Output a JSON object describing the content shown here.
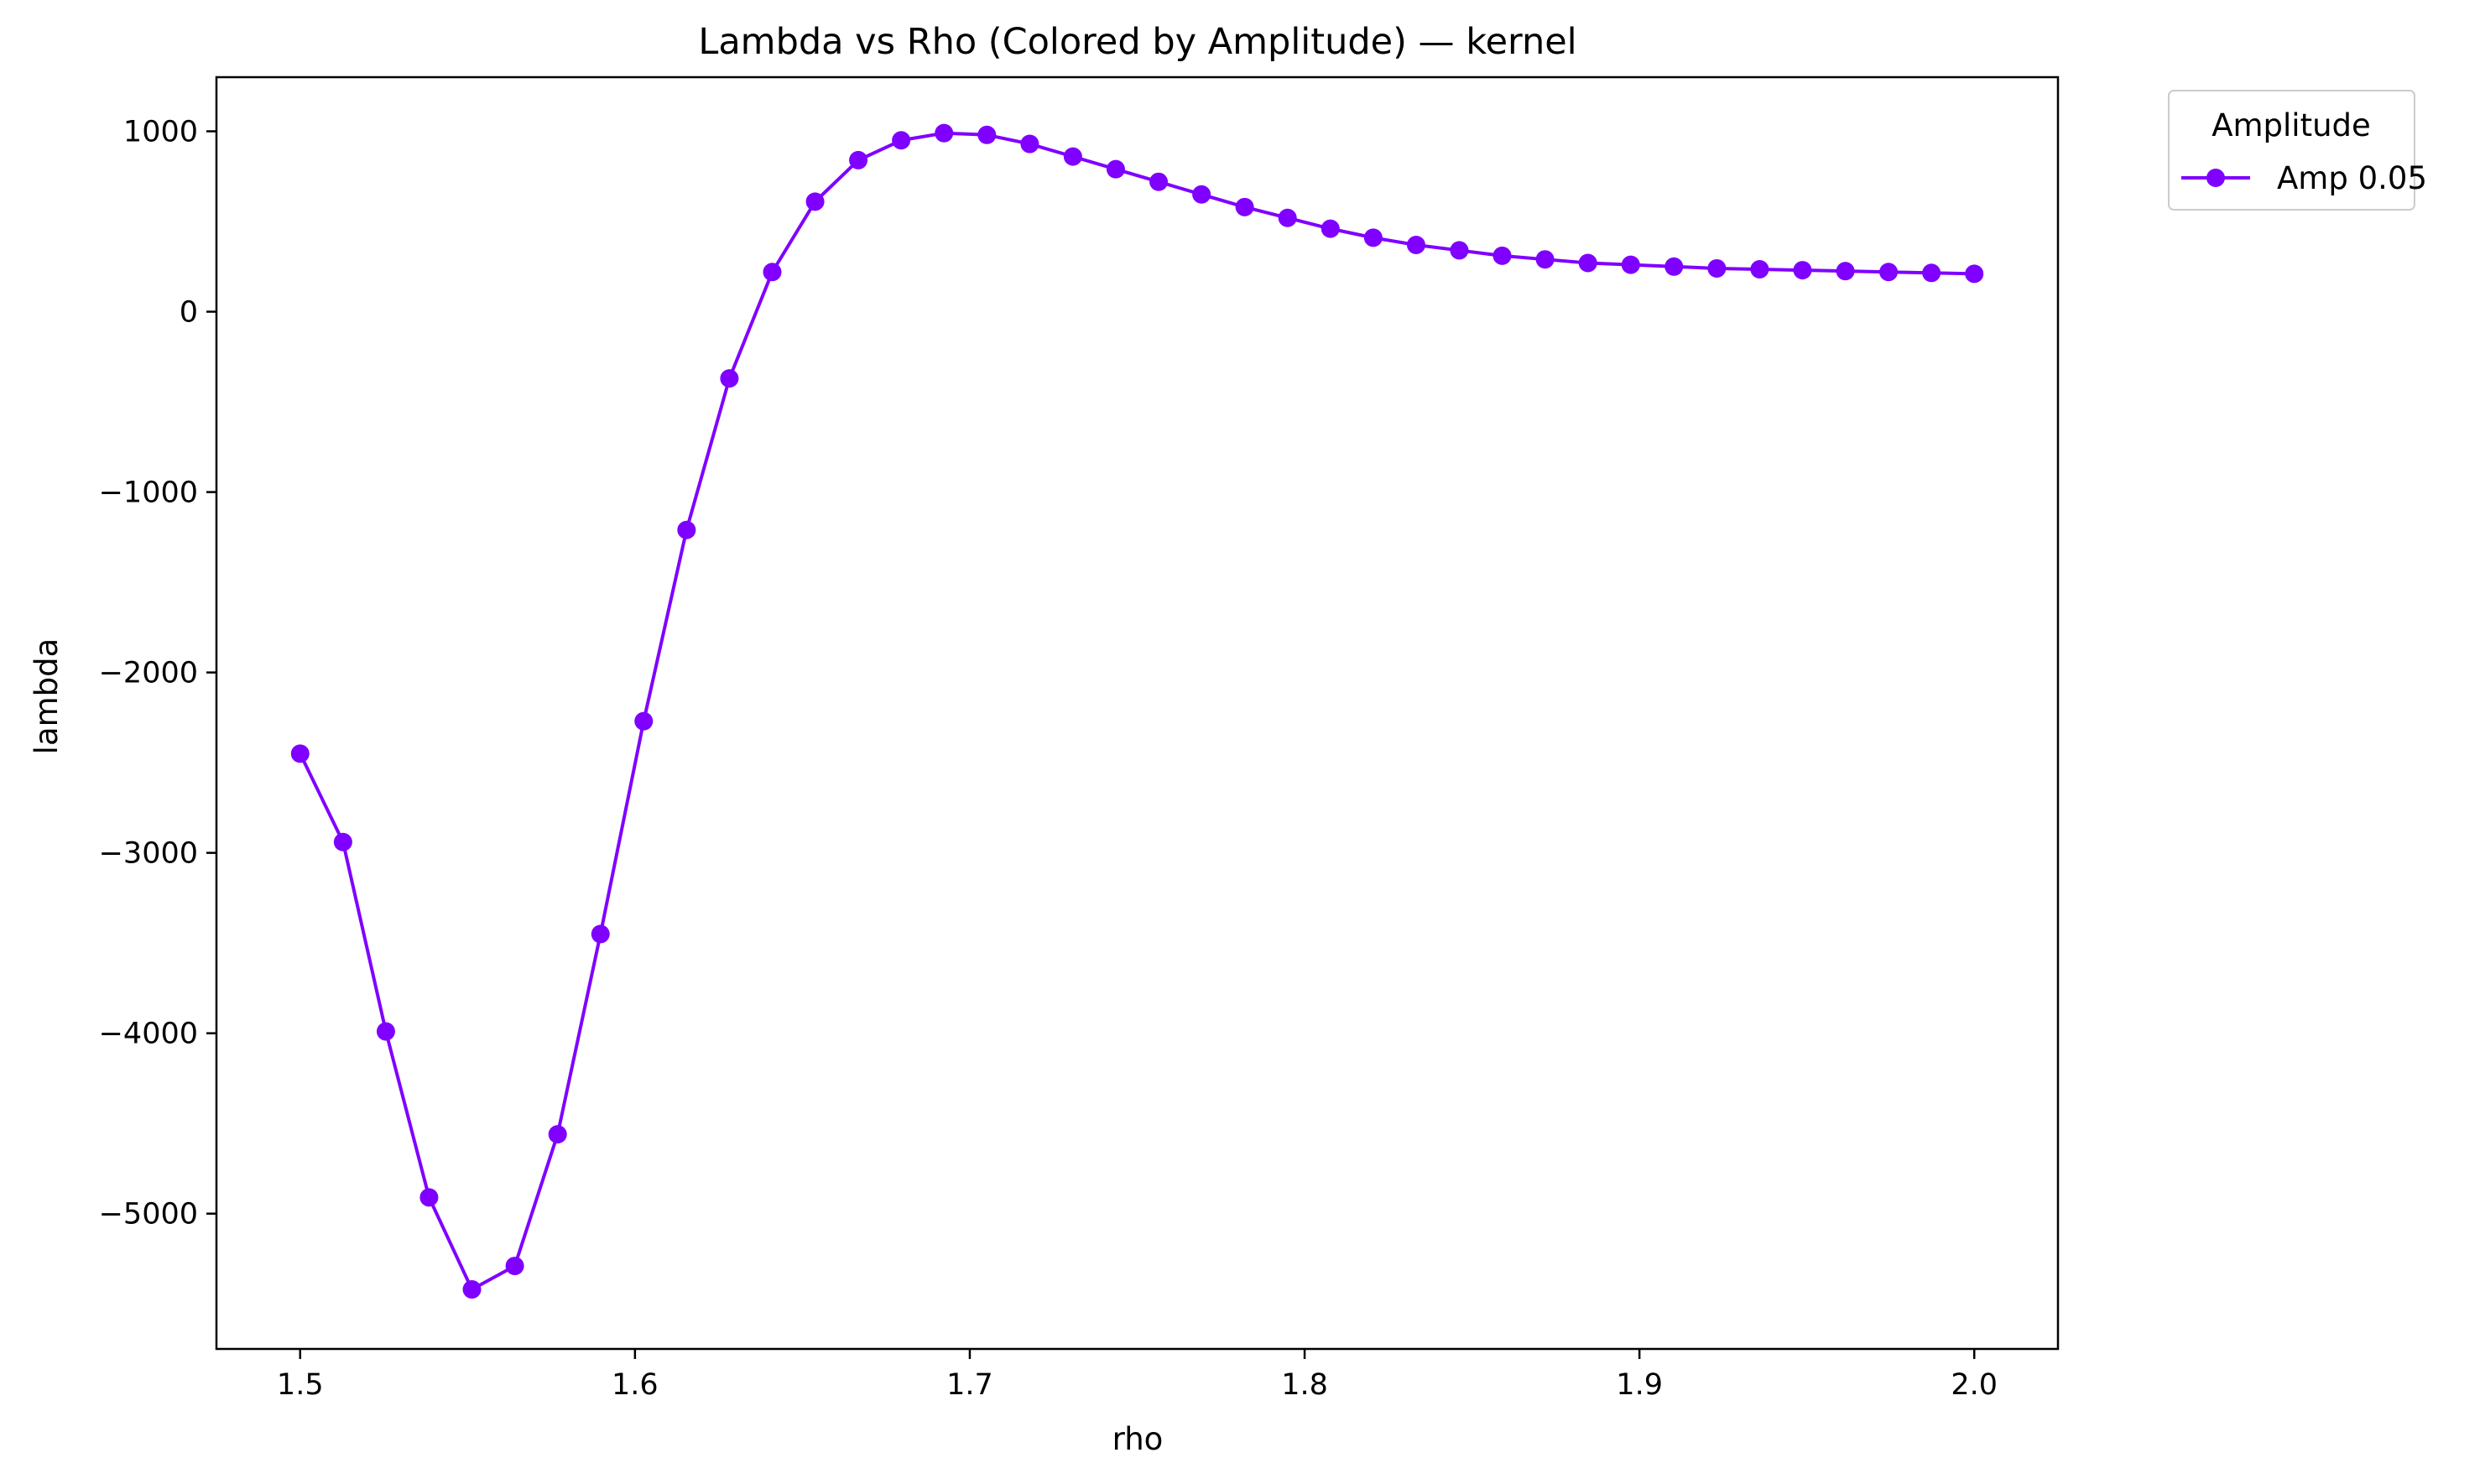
{
  "chart_data": {
    "type": "line",
    "title": "Lambda vs Rho (Colored by Amplitude) — kernel",
    "xlabel": "rho",
    "ylabel": "lambda",
    "xlim": [
      1.475,
      2.025
    ],
    "ylim": [
      -5750,
      1300
    ],
    "xticks": [
      1.5,
      1.6,
      1.7,
      1.8,
      1.9,
      2.0
    ],
    "xtick_labels": [
      "1.5",
      "1.6",
      "1.7",
      "1.8",
      "1.9",
      "2.0"
    ],
    "yticks": [
      1000,
      0,
      -1000,
      -2000,
      -3000,
      -4000,
      -5000
    ],
    "ytick_labels": [
      "1000",
      "0",
      "−1000",
      "−2000",
      "−3000",
      "−4000",
      "−5000"
    ],
    "grid": false,
    "legend": {
      "title": "Amplitude",
      "placement": "outside-top-right"
    },
    "series": [
      {
        "name": "Amp 0.05",
        "color": "#7f00ff",
        "marker": "circle",
        "x": [
          1.5,
          1.5128,
          1.5256,
          1.5385,
          1.5513,
          1.5641,
          1.5769,
          1.5897,
          1.6026,
          1.6154,
          1.6282,
          1.641,
          1.6538,
          1.6667,
          1.6795,
          1.6923,
          1.7051,
          1.7179,
          1.7308,
          1.7436,
          1.7564,
          1.7692,
          1.7821,
          1.7949,
          1.8077,
          1.8205,
          1.8333,
          1.8462,
          1.859,
          1.8718,
          1.8846,
          1.8974,
          1.9103,
          1.9231,
          1.9359,
          1.9487,
          1.9615,
          1.9744,
          1.9872,
          2.0
        ],
        "y": [
          -2450,
          -2940,
          -3990,
          -4910,
          -5420,
          -5290,
          -4560,
          -3450,
          -2270,
          -1210,
          -370,
          220,
          610,
          840,
          950,
          990,
          980,
          930,
          860,
          790,
          720,
          650,
          580,
          520,
          460,
          410,
          370,
          340,
          310,
          290,
          270,
          260,
          250,
          240,
          235,
          230,
          225,
          220,
          215,
          210
        ]
      }
    ]
  }
}
